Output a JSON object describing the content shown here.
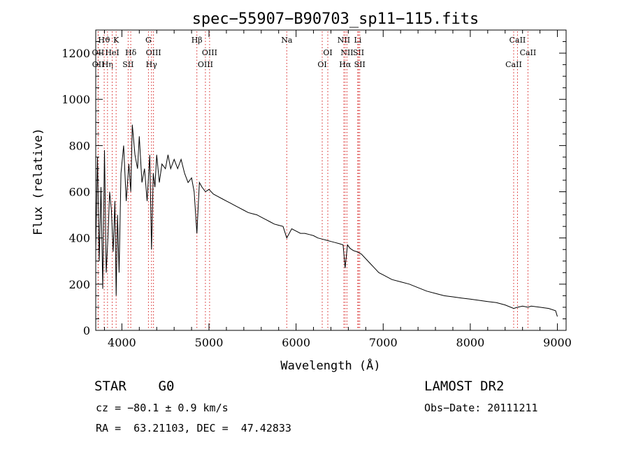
{
  "chart_data": {
    "type": "line",
    "title": "spec−55907−B90703_sp11−115.fits",
    "xlabel": "Wavelength (Å)",
    "ylabel": "Flux (relative)",
    "xlim": [
      3700,
      9100
    ],
    "ylim": [
      0,
      1300
    ],
    "x_ticks": [
      4000,
      5000,
      6000,
      7000,
      8000,
      9000
    ],
    "y_ticks": [
      0,
      200,
      400,
      600,
      800,
      1000,
      1200
    ],
    "grid": false,
    "series": [
      {
        "color": "#000000",
        "x": [
          3700,
          3720,
          3740,
          3760,
          3780,
          3800,
          3820,
          3840,
          3860,
          3880,
          3900,
          3920,
          3934,
          3950,
          3968,
          3990,
          4020,
          4050,
          4080,
          4102,
          4120,
          4150,
          4180,
          4200,
          4230,
          4260,
          4290,
          4320,
          4340,
          4360,
          4380,
          4400,
          4430,
          4460,
          4500,
          4530,
          4560,
          4600,
          4640,
          4680,
          4720,
          4760,
          4800,
          4830,
          4861,
          4890,
          4920,
          4960,
          5000,
          5050,
          5100,
          5150,
          5200,
          5250,
          5300,
          5350,
          5400,
          5450,
          5500,
          5550,
          5600,
          5650,
          5700,
          5750,
          5800,
          5850,
          5893,
          5950,
          6000,
          6050,
          6100,
          6150,
          6200,
          6250,
          6300,
          6350,
          6400,
          6450,
          6500,
          6540,
          6563,
          6590,
          6620,
          6660,
          6700,
          6750,
          6800,
          6850,
          6900,
          6950,
          7000,
          7100,
          7200,
          7300,
          7400,
          7500,
          7600,
          7700,
          7800,
          7900,
          8000,
          8100,
          8200,
          8300,
          8400,
          8498,
          8542,
          8600,
          8662,
          8700,
          8800,
          8900,
          8980,
          9000
        ],
        "y": [
          350,
          750,
          300,
          620,
          180,
          780,
          250,
          400,
          600,
          520,
          340,
          560,
          150,
          500,
          250,
          680,
          800,
          560,
          720,
          600,
          890,
          760,
          700,
          840,
          640,
          700,
          560,
          760,
          350,
          680,
          620,
          760,
          640,
          720,
          700,
          760,
          700,
          740,
          700,
          740,
          680,
          640,
          660,
          600,
          420,
          640,
          620,
          600,
          610,
          590,
          580,
          570,
          560,
          550,
          540,
          530,
          520,
          510,
          505,
          500,
          490,
          480,
          470,
          460,
          455,
          450,
          400,
          440,
          430,
          420,
          420,
          415,
          410,
          400,
          395,
          390,
          385,
          380,
          375,
          370,
          270,
          370,
          355,
          345,
          340,
          330,
          310,
          290,
          270,
          250,
          240,
          220,
          210,
          200,
          185,
          170,
          160,
          150,
          145,
          140,
          135,
          130,
          125,
          120,
          110,
          95,
          100,
          105,
          100,
          105,
          100,
          95,
          85,
          60
        ]
      }
    ],
    "lines": {
      "color": "#d62020",
      "items": [
        {
          "label": "Hϑ",
          "x": 3797,
          "row": 0
        },
        {
          "label": "OII",
          "x": 3727,
          "row": 1
        },
        {
          "label": "OII",
          "x": 3729,
          "row": 2
        },
        {
          "label": "Hη",
          "x": 3835,
          "row": 2
        },
        {
          "label": "HeI",
          "x": 3889,
          "row": 1
        },
        {
          "label": "K",
          "x": 3934,
          "row": 0
        },
        {
          "label": "Hδ",
          "x": 4102,
          "row": 1
        },
        {
          "label": "SII",
          "x": 4072,
          "row": 2
        },
        {
          "label": "G",
          "x": 4305,
          "row": 0
        },
        {
          "label": "OIII",
          "x": 4363,
          "row": 1
        },
        {
          "label": "Hγ",
          "x": 4340,
          "row": 2
        },
        {
          "label": "Hβ",
          "x": 4861,
          "row": 0
        },
        {
          "label": "OIII",
          "x": 5007,
          "row": 1
        },
        {
          "label": "OIII",
          "x": 4959,
          "row": 2
        },
        {
          "label": "Na",
          "x": 5893,
          "row": 0
        },
        {
          "label": "OI",
          "x": 6364,
          "row": 1
        },
        {
          "label": "OI",
          "x": 6300,
          "row": 2
        },
        {
          "label": "NII",
          "x": 6548,
          "row": 0
        },
        {
          "label": "Li",
          "x": 6708,
          "row": 0
        },
        {
          "label": "NII",
          "x": 6584,
          "row": 1
        },
        {
          "label": "SII",
          "x": 6717,
          "row": 1
        },
        {
          "label": "Hα",
          "x": 6563,
          "row": 2
        },
        {
          "label": "SII",
          "x": 6731,
          "row": 2
        },
        {
          "label": "CaII",
          "x": 8542,
          "row": 0
        },
        {
          "label": "CaII",
          "x": 8662,
          "row": 1
        },
        {
          "label": "CaII",
          "x": 8498,
          "row": 2
        }
      ]
    }
  },
  "info": {
    "class_label": "STAR    G0",
    "cz": "cz = −80.1 ± 0.9 km/s",
    "coords": "RA =  63.21103, DEC =  47.42833",
    "survey": "LAMOST DR2",
    "obs_date": "Obs−Date: 20111211"
  }
}
